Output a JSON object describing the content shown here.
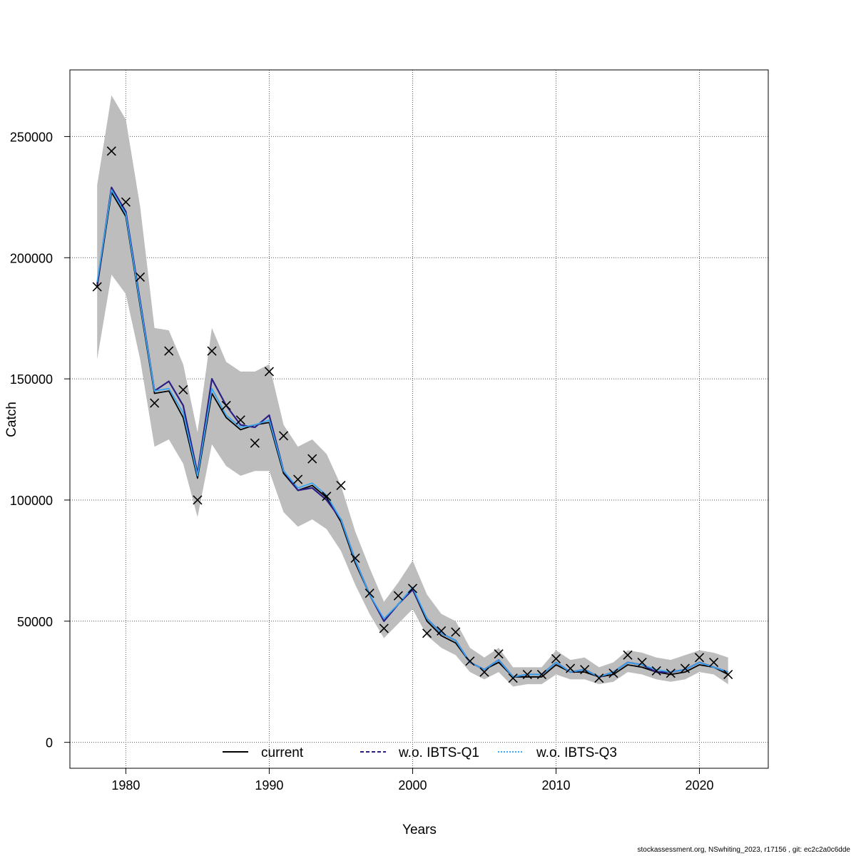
{
  "footer": "stockassessment.org, NSwhiting_2023, r17156 , git: ec2c2a0c6dde",
  "chart_data": {
    "type": "line",
    "title": "",
    "xlabel": "Years",
    "ylabel": "Catch",
    "xlim": [
      1976.1,
      2024.8
    ],
    "ylim": [
      -10700,
      277500
    ],
    "xticks": [
      1980,
      1990,
      2000,
      2010,
      2020
    ],
    "yticks": [
      0,
      50000,
      100000,
      150000,
      200000,
      250000
    ],
    "grid": true,
    "legend_position": "bottom",
    "colors": {
      "band": "#bdbdbd",
      "current": "#000000",
      "q1": "#2a1f86",
      "q3": "#3aa6f0",
      "observed": "#000000",
      "grid": "#555555"
    },
    "x": [
      1978,
      1979,
      1980,
      1981,
      1982,
      1983,
      1984,
      1985,
      1986,
      1987,
      1988,
      1989,
      1990,
      1991,
      1992,
      1993,
      1994,
      1995,
      1996,
      1997,
      1998,
      1999,
      2000,
      2001,
      2002,
      2003,
      2004,
      2005,
      2006,
      2007,
      2008,
      2009,
      2010,
      2011,
      2012,
      2013,
      2014,
      2015,
      2016,
      2017,
      2018,
      2019,
      2020,
      2021,
      2022
    ],
    "series": [
      {
        "name": "current",
        "style": "solid",
        "values": [
          188000,
          227000,
          217000,
          180000,
          144000,
          145000,
          134000,
          109000,
          144000,
          134000,
          129000,
          131000,
          132000,
          111000,
          104000,
          106000,
          101000,
          91000,
          74000,
          61000,
          50000,
          57000,
          63000,
          50000,
          44000,
          41000,
          33000,
          30000,
          33000,
          27000,
          27000,
          27000,
          32000,
          29000,
          29000,
          27000,
          28000,
          32000,
          31000,
          29000,
          28000,
          29000,
          32000,
          31000,
          28000
        ]
      },
      {
        "name": "w.o. IBTS-Q1",
        "style": "dashed",
        "values": [
          189000,
          229000,
          219000,
          182000,
          145000,
          149000,
          139000,
          111000,
          150000,
          139000,
          131000,
          130000,
          135000,
          112000,
          104000,
          105000,
          100000,
          92000,
          75000,
          61000,
          50000,
          57000,
          63000,
          51000,
          45000,
          42000,
          33000,
          30000,
          34000,
          27000,
          28000,
          28000,
          33000,
          29000,
          30000,
          27000,
          29000,
          33000,
          32000,
          29000,
          29000,
          30000,
          33000,
          31000,
          29000
        ]
      },
      {
        "name": "w.o. IBTS-Q3",
        "style": "dotted",
        "values": [
          190000,
          228000,
          218000,
          181000,
          145000,
          146000,
          136000,
          110000,
          146000,
          135000,
          130000,
          131000,
          133000,
          112000,
          105000,
          107000,
          102000,
          92000,
          75000,
          61000,
          51000,
          57000,
          64000,
          51000,
          45000,
          42000,
          33000,
          30000,
          34000,
          27000,
          28000,
          28000,
          33000,
          29000,
          30000,
          27000,
          29000,
          33000,
          32000,
          30000,
          29000,
          30000,
          33000,
          31000,
          29000
        ]
      }
    ],
    "confidence_band": {
      "upper": [
        230000,
        267000,
        257000,
        221000,
        171000,
        170000,
        156000,
        128000,
        171000,
        157000,
        153000,
        153000,
        156000,
        131000,
        122000,
        125000,
        119000,
        106000,
        87000,
        72000,
        58000,
        66000,
        75000,
        61000,
        53000,
        50000,
        39000,
        35000,
        39000,
        31000,
        31000,
        31000,
        38000,
        34000,
        35000,
        31000,
        33000,
        38000,
        37000,
        35000,
        34000,
        36000,
        38000,
        37000,
        35000
      ],
      "lower": [
        158000,
        193000,
        185000,
        158000,
        122000,
        125000,
        115000,
        93000,
        123000,
        114000,
        110000,
        112000,
        112000,
        95000,
        89000,
        92000,
        88000,
        79000,
        65000,
        53000,
        43000,
        49000,
        55000,
        44000,
        39000,
        36000,
        29000,
        26000,
        29000,
        23000,
        24000,
        24000,
        28000,
        26000,
        26000,
        24000,
        25000,
        29000,
        28000,
        26000,
        25000,
        26000,
        29000,
        28000,
        24000
      ]
    },
    "observed": {
      "marker": "x",
      "values": [
        188000,
        244000,
        223000,
        192000,
        140000,
        161500,
        145500,
        100000,
        161500,
        139000,
        133000,
        123500,
        153000,
        126500,
        108500,
        117000,
        101500,
        106000,
        76000,
        61500,
        47000,
        60500,
        63500,
        45000,
        46000,
        45500,
        33500,
        29000,
        36500,
        26500,
        28000,
        28000,
        34500,
        30500,
        30000,
        26500,
        28500,
        36000,
        33000,
        29500,
        28500,
        30500,
        35000,
        33000,
        28000
      ]
    }
  }
}
